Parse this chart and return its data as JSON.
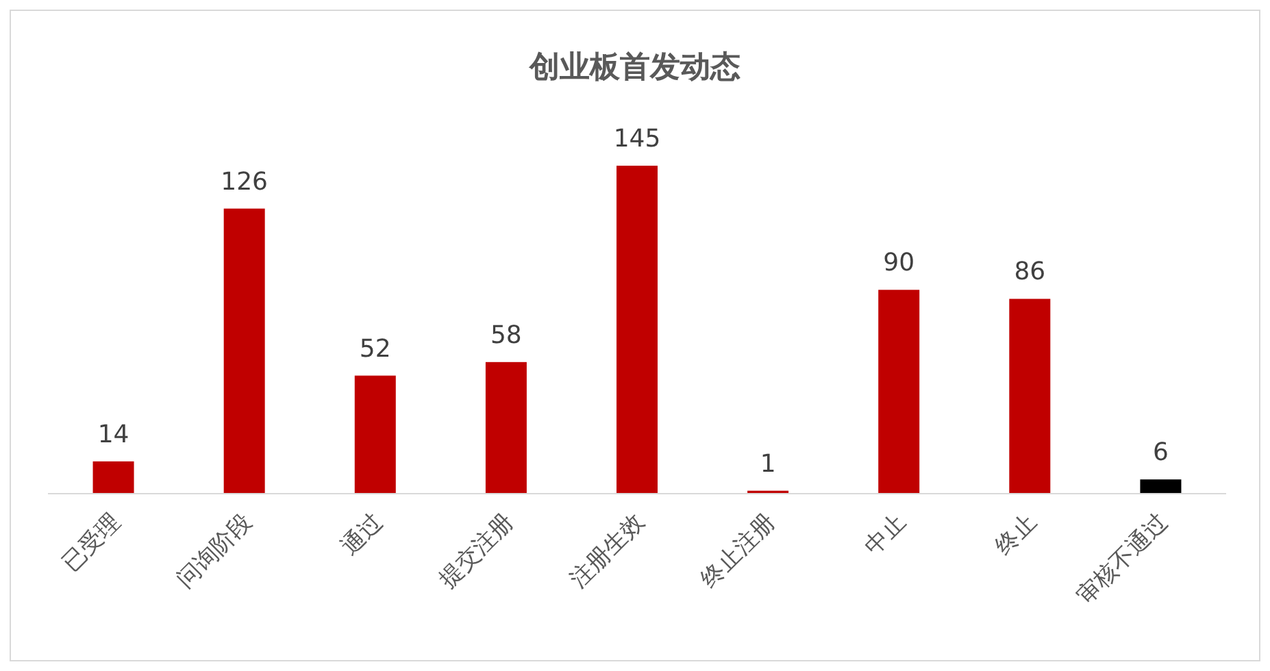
{
  "chart_data": {
    "type": "bar",
    "title": "创业板首发动态",
    "categories": [
      "已受理",
      "问询阶段",
      "通过",
      "提交注册",
      "注册生效",
      "终止注册",
      "中止",
      "终止",
      "审核不通过"
    ],
    "values": [
      14,
      126,
      52,
      58,
      145,
      1,
      90,
      86,
      6
    ],
    "colors": [
      "#c00000",
      "#c00000",
      "#c00000",
      "#c00000",
      "#c00000",
      "#c00000",
      "#c00000",
      "#c00000",
      "#000000"
    ],
    "data_labels": true
  }
}
